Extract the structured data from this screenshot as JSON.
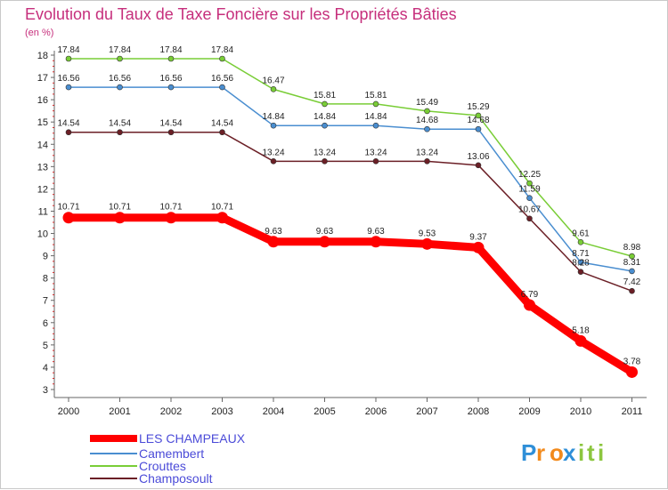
{
  "chart_data": {
    "type": "line",
    "title": "Evolution du Taux de Taxe Foncière sur les Propriétés Bâties",
    "unit_label": "(en %)",
    "xlabel": "",
    "ylabel": "",
    "ylim": [
      3,
      18
    ],
    "yticks": [
      "3",
      "4",
      "5",
      "6",
      "7",
      "8",
      "9",
      "10",
      "11",
      "12",
      "13",
      "14",
      "15",
      "16",
      "17",
      "18"
    ],
    "categories": [
      "2000",
      "2001",
      "2002",
      "2003",
      "2004",
      "2005",
      "2006",
      "2007",
      "2008",
      "2009",
      "2010",
      "2011"
    ],
    "series": [
      {
        "name": "LES CHAMPEAUX",
        "color": "#ff0000",
        "values": [
          10.71,
          10.71,
          10.71,
          10.71,
          9.63,
          9.63,
          9.63,
          9.53,
          9.37,
          6.79,
          5.18,
          3.78
        ],
        "labels": [
          "10.71",
          "10.71",
          "10.71",
          "10.71",
          "9.63",
          "9.63",
          "9.63",
          "9.53",
          "9.37",
          "6.79",
          "5.18",
          "3.78"
        ]
      },
      {
        "name": "Camembert",
        "color": "#4a8ed0",
        "values": [
          16.56,
          16.56,
          16.56,
          16.56,
          14.84,
          14.84,
          14.84,
          14.68,
          14.68,
          11.59,
          8.71,
          8.31
        ],
        "labels": [
          "16.56",
          "16.56",
          "16.56",
          "16.56",
          "14.84",
          "14.84",
          "14.84",
          "14.68",
          "14.68",
          "11.59",
          "8.71",
          "8.31"
        ]
      },
      {
        "name": "Crouttes",
        "color": "#79cd36",
        "values": [
          17.84,
          17.84,
          17.84,
          17.84,
          16.47,
          15.81,
          15.81,
          15.49,
          15.29,
          12.25,
          9.61,
          8.98
        ],
        "labels": [
          "17.84",
          "17.84",
          "17.84",
          "17.84",
          "16.47",
          "15.81",
          "15.81",
          "15.49",
          "15.29",
          "12.25",
          "9.61",
          "8.98"
        ]
      },
      {
        "name": "Champosoult",
        "color": "#6b1f26",
        "values": [
          14.54,
          14.54,
          14.54,
          14.54,
          13.24,
          13.24,
          13.24,
          13.24,
          13.06,
          10.67,
          8.28,
          7.42
        ],
        "labels": [
          "14.54",
          "14.54",
          "14.54",
          "14.54",
          "13.24",
          "13.24",
          "13.24",
          "13.24",
          "13.06",
          "10.67",
          "8.28",
          "7.42"
        ]
      }
    ],
    "legend": [
      "LES CHAMPEAUX",
      "Camembert",
      "Crouttes",
      "Champosoult"
    ],
    "legend_position": "bottom-left",
    "grid": false
  },
  "logo": {
    "letters": [
      "P",
      "r",
      "o",
      "x",
      "i",
      "t",
      "i"
    ],
    "colors": [
      "#2f8fd8",
      "#f28a1c",
      "#f28a1c",
      "#2f8fd8",
      "#8cc63f",
      "#8cc63f",
      "#8cc63f"
    ]
  }
}
